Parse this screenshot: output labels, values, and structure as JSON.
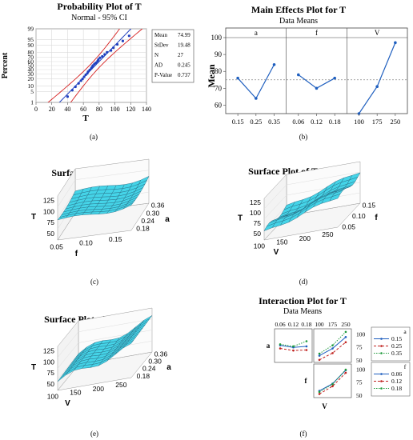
{
  "panels": {
    "a": {
      "label": "(a)",
      "chart_data": {
        "type": "scatter",
        "title": "Probability Plot of T",
        "subtitle": "Normal - 95% CI",
        "xlabel": "T",
        "ylabel": "Percent",
        "xlim": [
          0,
          140
        ],
        "x_ticks": [
          0,
          20,
          40,
          60,
          80,
          100,
          120,
          140
        ],
        "y_ticks": [
          1,
          5,
          10,
          20,
          30,
          40,
          50,
          60,
          70,
          80,
          90,
          95,
          99
        ],
        "points": [
          {
            "x": 40,
            "y": 2.5
          },
          {
            "x": 46,
            "y": 6
          },
          {
            "x": 50,
            "y": 9
          },
          {
            "x": 54,
            "y": 13
          },
          {
            "x": 57,
            "y": 17
          },
          {
            "x": 59,
            "y": 20
          },
          {
            "x": 61,
            "y": 24
          },
          {
            "x": 63,
            "y": 28
          },
          {
            "x": 65,
            "y": 31
          },
          {
            "x": 66,
            "y": 35
          },
          {
            "x": 68,
            "y": 39
          },
          {
            "x": 70,
            "y": 43
          },
          {
            "x": 71,
            "y": 46
          },
          {
            "x": 72,
            "y": 50
          },
          {
            "x": 74,
            "y": 54
          },
          {
            "x": 76,
            "y": 57
          },
          {
            "x": 78,
            "y": 61
          },
          {
            "x": 79,
            "y": 65
          },
          {
            "x": 81,
            "y": 69
          },
          {
            "x": 84,
            "y": 72
          },
          {
            "x": 87,
            "y": 76
          },
          {
            "x": 90,
            "y": 80
          },
          {
            "x": 95,
            "y": 83
          },
          {
            "x": 98,
            "y": 87
          },
          {
            "x": 103,
            "y": 91
          },
          {
            "x": 110,
            "y": 94
          },
          {
            "x": 118,
            "y": 97
          }
        ],
        "stats": [
          {
            "label": "Mean",
            "value": "74.99"
          },
          {
            "label": "StDev",
            "value": "19.48"
          },
          {
            "label": "N",
            "value": "27"
          },
          {
            "label": "AD",
            "value": "0.245"
          },
          {
            "label": "P-Value",
            "value": "0.737"
          }
        ],
        "fit_color": "#1f3fbf",
        "ci_color": "#d62020",
        "point_color": "#1f3fbf"
      }
    },
    "b": {
      "label": "(b)",
      "chart_data": {
        "type": "line",
        "title": "Main Effects Plot for T",
        "subtitle": "Data Means",
        "ylabel": "Mean",
        "ylim": [
          55,
          100
        ],
        "y_ticks": [
          60,
          70,
          80,
          90,
          100
        ],
        "grand_mean": 75,
        "color": "#1f5fbf",
        "factors": [
          {
            "name": "a",
            "levels": [
              "0.15",
              "0.25",
              "0.35"
            ],
            "values": [
              76,
              64,
              84
            ]
          },
          {
            "name": "f",
            "levels": [
              "0.06",
              "0.12",
              "0.18"
            ],
            "values": [
              78,
              70,
              76
            ]
          },
          {
            "name": "V",
            "levels": [
              "100",
              "175",
              "250"
            ],
            "values": [
              55,
              71,
              97
            ]
          }
        ]
      }
    },
    "c": {
      "label": "(c)",
      "chart_data": {
        "type": "surface",
        "title": "Surface Plot of T vs a, f",
        "zlabel": "T",
        "xlabel": "f",
        "ylabel": "a",
        "z_ticks": [
          "125",
          "100",
          "75",
          "50"
        ],
        "x_ticks": [
          "0.05",
          "0.10",
          "0.15"
        ],
        "y_ticks": [
          "0.18",
          "0.24",
          "0.30",
          "0.36"
        ],
        "color": "#35d0e6"
      }
    },
    "d": {
      "label": "(d)",
      "chart_data": {
        "type": "surface",
        "title": "Surface Plot of T vs f, V",
        "zlabel": "T",
        "xlabel": "V",
        "ylabel": "f",
        "z_ticks": [
          "125",
          "100",
          "75",
          "50"
        ],
        "x_ticks": [
          "100",
          "150",
          "200",
          "250"
        ],
        "y_ticks": [
          "0.05",
          "0.10",
          "0.15"
        ],
        "color": "#35d0e6"
      }
    },
    "e": {
      "label": "(e)",
      "chart_data": {
        "type": "surface",
        "title": "Surface Plot of T vs a, V",
        "zlabel": "T",
        "xlabel": "V",
        "ylabel": "a",
        "z_ticks": [
          "125",
          "100",
          "75",
          "50"
        ],
        "x_ticks": [
          "100",
          "150",
          "200",
          "250"
        ],
        "y_ticks": [
          "0.18",
          "0.24",
          "0.30",
          "0.36"
        ],
        "color": "#35d0e6"
      }
    },
    "f": {
      "label": "(f)",
      "chart_data": {
        "type": "line",
        "title": "Interaction Plot for T",
        "subtitle": "Data Means",
        "rows": [
          "a",
          "f"
        ],
        "cols": [
          "f",
          "V"
        ],
        "f_levels": [
          "0.06",
          "0.12",
          "0.18"
        ],
        "v_levels": [
          "100",
          "175",
          "250"
        ],
        "y_ticks": [
          "100",
          "75",
          "50"
        ],
        "legends": [
          {
            "title": "a",
            "entries": [
              "0.15",
              "0.25",
              "0.35"
            ]
          },
          {
            "title": "f",
            "entries": [
              "0.06",
              "0.12",
              "0.18"
            ]
          }
        ],
        "series_colors": [
          "#1f5fbf",
          "#c0221f",
          "#1e9a3a"
        ],
        "a_vs_f": [
          [
            78,
            74,
            76
          ],
          [
            72,
            68,
            69
          ],
          [
            80,
            76,
            86
          ]
        ],
        "a_vs_V": [
          [
            58,
            72,
            94
          ],
          [
            50,
            63,
            84
          ],
          [
            62,
            78,
            104
          ]
        ],
        "f_vs_V": [
          [
            58,
            72,
            98
          ],
          [
            52,
            67,
            93
          ],
          [
            56,
            71,
            99
          ]
        ]
      }
    }
  }
}
